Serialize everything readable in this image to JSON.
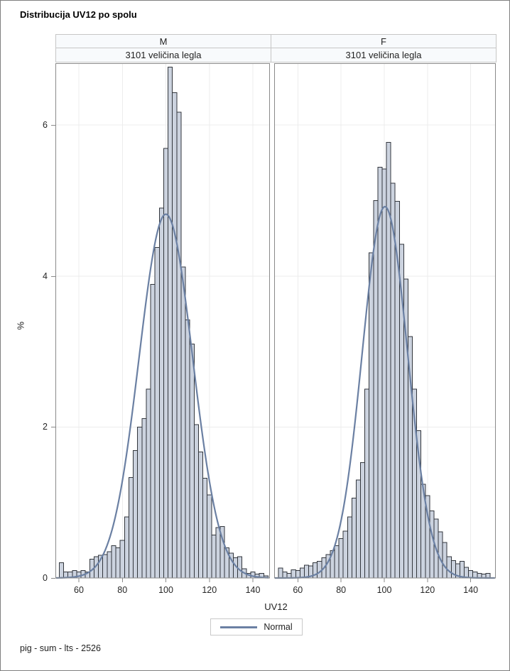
{
  "title": "Distribucija UV12 po spolu",
  "footer": "pig - sum - lts - 2526",
  "legend": {
    "label": "Normal"
  },
  "axes": {
    "y_label": "%",
    "x_label": "UV12",
    "y_ticks": [
      0,
      2,
      4,
      6
    ],
    "x_ticks": [
      60,
      80,
      100,
      120,
      140
    ],
    "y_max": 6.82,
    "grid": "on",
    "legend_position": "bottom-center"
  },
  "colors": {
    "bar_fill": "#ccd3df",
    "bar_edge": "#32363c",
    "curve": "#6b80a3",
    "grid": "#ececec",
    "wall_border": "#8a8a8a",
    "header_bg": "#f8fafc",
    "header_border": "#c6c6c6",
    "text": "#1f1f1f"
  },
  "chart_data": [
    {
      "type": "bar",
      "subtype": "histogram-with-normal-curve",
      "panel_label": "M",
      "subtitle": "3101 veličina legla",
      "x_variable": "UV12",
      "y_unit": "percent",
      "bin_width": 2,
      "bin_centers": [
        52,
        54,
        56,
        58,
        60,
        62,
        64,
        66,
        68,
        70,
        72,
        74,
        76,
        78,
        80,
        82,
        84,
        86,
        88,
        90,
        92,
        94,
        96,
        98,
        100,
        102,
        104,
        106,
        108,
        110,
        112,
        114,
        116,
        118,
        120,
        122,
        124,
        126,
        128,
        130,
        132,
        134,
        136,
        138,
        140,
        142,
        144,
        146
      ],
      "values_pct": [
        0.2,
        0.08,
        0.08,
        0.1,
        0.08,
        0.1,
        0.08,
        0.25,
        0.28,
        0.3,
        0.31,
        0.35,
        0.43,
        0.4,
        0.5,
        0.81,
        1.33,
        1.69,
        2.0,
        2.11,
        2.5,
        3.89,
        4.38,
        4.9,
        5.69,
        6.77,
        6.43,
        6.17,
        4.12,
        3.42,
        3.1,
        2.03,
        1.67,
        1.32,
        1.1,
        0.57,
        0.67,
        0.68,
        0.4,
        0.33,
        0.27,
        0.28,
        0.12,
        0.06,
        0.08,
        0.05,
        0.06,
        0.03
      ],
      "normal_overlay": {
        "mean": 100.0,
        "sd": 12.3,
        "peak_pct": 4.82
      }
    },
    {
      "type": "bar",
      "subtype": "histogram-with-normal-curve",
      "panel_label": "F",
      "subtitle": "3101 veličina legla",
      "x_variable": "UV12",
      "y_unit": "percent",
      "bin_width": 2,
      "bin_centers": [
        52,
        54,
        56,
        58,
        60,
        62,
        64,
        66,
        68,
        70,
        72,
        74,
        76,
        78,
        80,
        82,
        84,
        86,
        88,
        90,
        92,
        94,
        96,
        98,
        100,
        102,
        104,
        106,
        108,
        110,
        112,
        114,
        116,
        118,
        120,
        122,
        124,
        126,
        128,
        130,
        132,
        134,
        136,
        138,
        140,
        142,
        144,
        146,
        148
      ],
      "values_pct": [
        0.13,
        0.08,
        0.06,
        0.11,
        0.1,
        0.13,
        0.17,
        0.16,
        0.2,
        0.22,
        0.27,
        0.31,
        0.36,
        0.43,
        0.52,
        0.62,
        0.81,
        1.06,
        1.3,
        1.53,
        2.5,
        4.31,
        5.0,
        5.44,
        5.42,
        5.77,
        5.23,
        4.99,
        4.42,
        3.96,
        3.2,
        2.5,
        1.95,
        1.24,
        1.09,
        0.89,
        0.78,
        0.61,
        0.47,
        0.28,
        0.23,
        0.19,
        0.22,
        0.14,
        0.1,
        0.08,
        0.06,
        0.05,
        0.06
      ],
      "normal_overlay": {
        "mean": 100.3,
        "sd": 10.5,
        "peak_pct": 4.92
      }
    }
  ]
}
